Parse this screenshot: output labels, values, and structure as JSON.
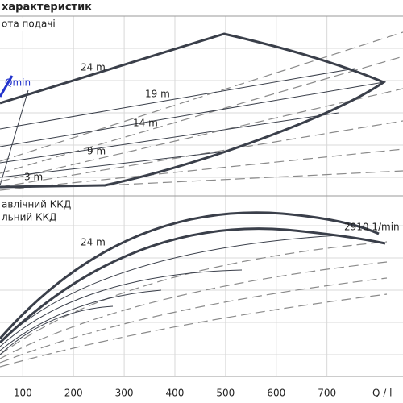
{
  "chart_data": {
    "type": "line",
    "title": "характеристик",
    "top_label": "ота подачі",
    "bottom_labels": [
      "авлічний ККД",
      "льний ККД"
    ],
    "annotations": [
      "Qmin",
      "24 m",
      "19 m",
      "14 m",
      "9 m",
      "3 m",
      "24 m",
      "2910  1/min"
    ],
    "xlabel": "Q / l",
    "xlim": [
      55,
      850
    ],
    "xticks": [
      100,
      200,
      300,
      400,
      500,
      600,
      700
    ],
    "grid": true
  }
}
